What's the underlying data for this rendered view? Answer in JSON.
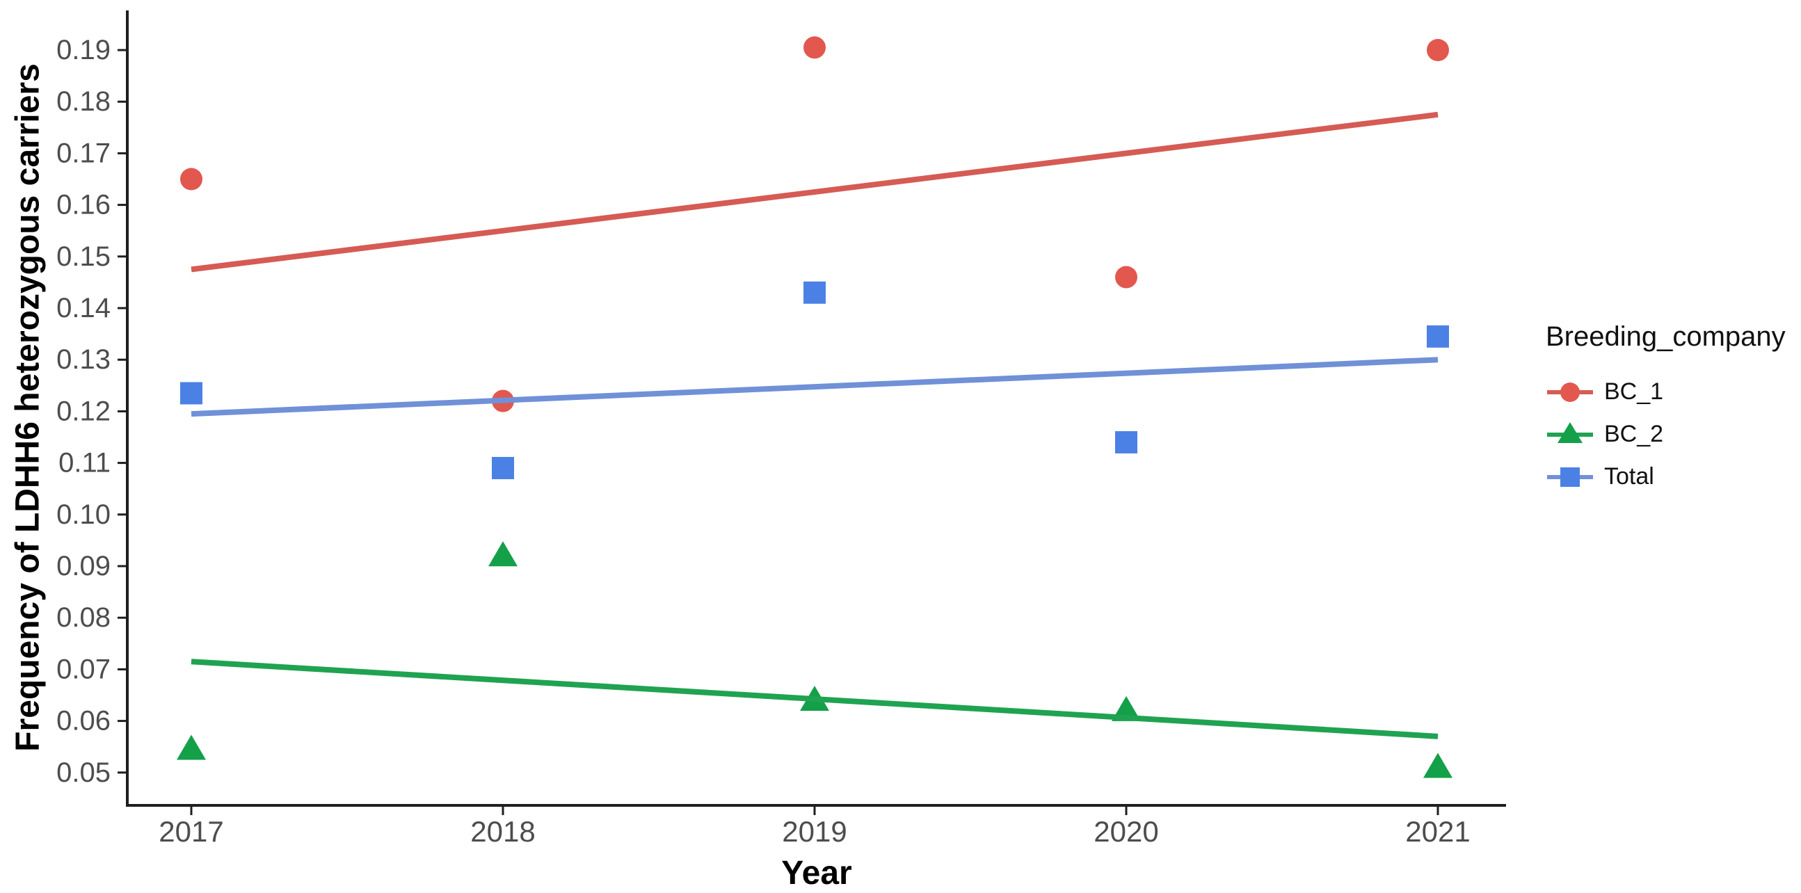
{
  "chart_data": {
    "type": "scatter",
    "title": "",
    "xlabel": "Year",
    "ylabel": "Frequency of LDHH6 heterozygous carriers",
    "x": [
      2017,
      2018,
      2019,
      2020,
      2021
    ],
    "x_tick_labels": [
      "2017",
      "2018",
      "2019",
      "2020",
      "2021"
    ],
    "y_ticks": [
      0.05,
      0.06,
      0.07,
      0.08,
      0.09,
      0.1,
      0.11,
      0.12,
      0.13,
      0.14,
      0.15,
      0.16,
      0.17,
      0.18,
      0.19
    ],
    "y_tick_labels": [
      "0.05",
      "0.06",
      "0.07",
      "0.08",
      "0.09",
      "0.10",
      "0.11",
      "0.12",
      "0.13",
      "0.14",
      "0.15",
      "0.16",
      "0.17",
      "0.18",
      "0.19"
    ],
    "ylim": [
      0.0436,
      0.1977
    ],
    "grid": false,
    "legend_title": "Breeding_company",
    "legend_position": "right",
    "series": [
      {
        "name": "BC_1",
        "marker": "circle",
        "point_color": "#e2574e",
        "line_color": "#d55b54",
        "values": [
          0.165,
          0.122,
          0.1905,
          0.146,
          0.19
        ],
        "trend_line": {
          "x_start": 2017,
          "y_start": 0.1475,
          "x_end": 2021,
          "y_end": 0.1775
        }
      },
      {
        "name": "BC_2",
        "marker": "triangle",
        "point_color": "#13a049",
        "line_color": "#1fa351",
        "values": [
          0.0545,
          0.092,
          0.064,
          0.062,
          0.051
        ],
        "trend_line": {
          "x_start": 2017,
          "y_start": 0.0715,
          "x_end": 2021,
          "y_end": 0.057
        }
      },
      {
        "name": "Total",
        "marker": "square",
        "point_color": "#4b81e4",
        "line_color": "#7090d8",
        "values": [
          0.1235,
          0.109,
          0.143,
          0.114,
          0.1345
        ],
        "trend_line": {
          "x_start": 2017,
          "y_start": 0.1195,
          "x_end": 2021,
          "y_end": 0.13
        }
      }
    ],
    "axis_color": "#1f1f1f",
    "tick_label_color": "#4d4d4d"
  }
}
